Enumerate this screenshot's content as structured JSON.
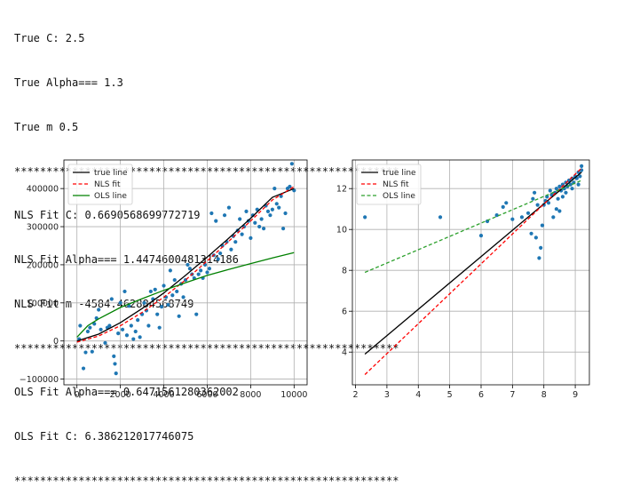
{
  "console": {
    "lines": [
      "True C: 2.5",
      "True Alpha=== 1.3",
      "True m 0.5",
      "************************************************************",
      "NLS Fit C: 0.6690568699772719",
      "NLS Fit Alpha=== 1.4474600481314186",
      "NLS Fit m -4584.462884568749",
      "************************************************************",
      "OLS Fit Alpha=== 0.6471561280362002",
      "OLS Fit C: 6.386212017746075",
      "************************************************************"
    ]
  },
  "colors": {
    "true_line": "#000000",
    "nls_fit": "#ff0000",
    "ols_line_left": "#008000",
    "ols_line_right": "#2ca02c",
    "scatter": "#1f77b4",
    "grid": "#b0b0b0"
  },
  "chart_data": [
    {
      "type": "scatter",
      "title": "",
      "xlabel": "",
      "ylabel": "",
      "xlim": [
        -600,
        10600
      ],
      "ylim": [
        -115000,
        475000
      ],
      "xticks": [
        0,
        2000,
        4000,
        6000,
        8000,
        10000
      ],
      "xtick_labels": [
        "0",
        "2000",
        "4000",
        "6000",
        "8000",
        "10000"
      ],
      "yticks": [
        -100000,
        0,
        100000,
        200000,
        300000,
        400000
      ],
      "ytick_labels": [
        "−100000",
        "0",
        "100000",
        "200000",
        "300000",
        "400000"
      ],
      "grid": true,
      "legend": {
        "position": "top-left",
        "entries": [
          {
            "label": "true line",
            "color": "#000000",
            "dash": "solid"
          },
          {
            "label": "NLS fit",
            "color": "#ff0000",
            "dash": "dashed"
          },
          {
            "label": "OLS line",
            "color": "#008000",
            "dash": "solid"
          }
        ]
      },
      "points": [
        [
          100,
          5000
        ],
        [
          150,
          40000
        ],
        [
          300,
          -72000
        ],
        [
          400,
          -30000
        ],
        [
          500,
          25000
        ],
        [
          600,
          35000
        ],
        [
          700,
          -28000
        ],
        [
          800,
          45000
        ],
        [
          900,
          60000
        ],
        [
          1000,
          82000
        ],
        [
          1100,
          30000
        ],
        [
          1300,
          -5000
        ],
        [
          1400,
          35000
        ],
        [
          1500,
          40000
        ],
        [
          1600,
          110000
        ],
        [
          1700,
          -40000
        ],
        [
          1750,
          -60000
        ],
        [
          1800,
          -85000
        ],
        [
          1900,
          20000
        ],
        [
          2000,
          100000
        ],
        [
          2100,
          30000
        ],
        [
          2200,
          130000
        ],
        [
          2300,
          15000
        ],
        [
          2400,
          92000
        ],
        [
          2500,
          40000
        ],
        [
          2600,
          5000
        ],
        [
          2700,
          25000
        ],
        [
          2800,
          55000
        ],
        [
          2900,
          10000
        ],
        [
          3000,
          70000
        ],
        [
          3100,
          100000
        ],
        [
          3200,
          80000
        ],
        [
          3300,
          40000
        ],
        [
          3400,
          130000
        ],
        [
          3500,
          110000
        ],
        [
          3600,
          135000
        ],
        [
          3700,
          70000
        ],
        [
          3800,
          35000
        ],
        [
          3900,
          90000
        ],
        [
          4000,
          145000
        ],
        [
          4100,
          115000
        ],
        [
          4200,
          95000
        ],
        [
          4300,
          185000
        ],
        [
          4400,
          120000
        ],
        [
          4500,
          160000
        ],
        [
          4600,
          130000
        ],
        [
          4700,
          65000
        ],
        [
          4800,
          150000
        ],
        [
          4900,
          115000
        ],
        [
          5000,
          160000
        ],
        [
          5100,
          200000
        ],
        [
          5200,
          190000
        ],
        [
          5300,
          175000
        ],
        [
          5400,
          165000
        ],
        [
          5500,
          70000
        ],
        [
          5600,
          175000
        ],
        [
          5700,
          185000
        ],
        [
          5800,
          165000
        ],
        [
          5900,
          200000
        ],
        [
          6000,
          180000
        ],
        [
          6100,
          190000
        ],
        [
          6200,
          335000
        ],
        [
          6300,
          225000
        ],
        [
          6400,
          315000
        ],
        [
          6500,
          215000
        ],
        [
          6600,
          230000
        ],
        [
          6700,
          250000
        ],
        [
          6800,
          330000
        ],
        [
          6900,
          260000
        ],
        [
          7000,
          350000
        ],
        [
          7100,
          240000
        ],
        [
          7200,
          275000
        ],
        [
          7300,
          260000
        ],
        [
          7400,
          290000
        ],
        [
          7500,
          320000
        ],
        [
          7600,
          280000
        ],
        [
          7700,
          300000
        ],
        [
          7800,
          340000
        ],
        [
          7900,
          315000
        ],
        [
          8000,
          270000
        ],
        [
          8100,
          330000
        ],
        [
          8200,
          310000
        ],
        [
          8300,
          345000
        ],
        [
          8400,
          300000
        ],
        [
          8500,
          320000
        ],
        [
          8600,
          295000
        ],
        [
          8700,
          355000
        ],
        [
          8800,
          340000
        ],
        [
          8900,
          330000
        ],
        [
          9000,
          345000
        ],
        [
          9100,
          400000
        ],
        [
          9200,
          360000
        ],
        [
          9300,
          350000
        ],
        [
          9400,
          380000
        ],
        [
          9500,
          295000
        ],
        [
          9600,
          335000
        ],
        [
          9700,
          400000
        ],
        [
          9800,
          405000
        ],
        [
          9900,
          465000
        ],
        [
          10000,
          395000
        ]
      ],
      "series": [
        {
          "name": "true line",
          "x": [
            0,
            1000,
            2000,
            3000,
            4000,
            5000,
            6000,
            7000,
            8000,
            9000,
            10000
          ],
          "y": [
            0,
            18000,
            48000,
            85000,
            126000,
            172000,
            220000,
            270000,
            322000,
            377000,
            400000
          ]
        },
        {
          "name": "NLS fit",
          "x": [
            0,
            1000,
            2000,
            3000,
            4000,
            5000,
            6000,
            7000,
            8000,
            9000,
            10000
          ],
          "y": [
            -3000,
            13000,
            40000,
            75000,
            115000,
            160000,
            210000,
            262000,
            315000,
            370000,
            405000
          ]
        },
        {
          "name": "OLS line",
          "x": [
            0,
            500,
            1000,
            2000,
            3000,
            4000,
            5000,
            6000,
            7000,
            8000,
            9000,
            10000
          ],
          "y": [
            10000,
            40000,
            58000,
            88000,
            111000,
            133000,
            153000,
            172000,
            188000,
            203000,
            218000,
            232000
          ]
        }
      ]
    },
    {
      "type": "scatter",
      "title": "",
      "xlabel": "",
      "ylabel": "",
      "xlim": [
        1.9,
        9.45
      ],
      "ylim": [
        2.4,
        13.4
      ],
      "xticks": [
        2,
        3,
        4,
        5,
        6,
        7,
        8,
        9
      ],
      "xtick_labels": [
        "2",
        "3",
        "4",
        "5",
        "6",
        "7",
        "8",
        "9"
      ],
      "yticks": [
        4,
        6,
        8,
        10,
        12
      ],
      "ytick_labels": [
        "4",
        "6",
        "8",
        "10",
        "12"
      ],
      "grid": true,
      "legend": {
        "position": "top-left",
        "entries": [
          {
            "label": "true line",
            "color": "#000000",
            "dash": "solid"
          },
          {
            "label": "NLS fit",
            "color": "#ff0000",
            "dash": "dashed"
          },
          {
            "label": "OLS line",
            "color": "#2ca02c",
            "dash": "dashed"
          }
        ]
      },
      "points": [
        [
          2.3,
          10.6
        ],
        [
          4.7,
          10.6
        ],
        [
          6.0,
          9.7
        ],
        [
          6.2,
          10.4
        ],
        [
          6.5,
          10.7
        ],
        [
          6.7,
          11.1
        ],
        [
          6.8,
          11.3
        ],
        [
          7.0,
          10.5
        ],
        [
          7.3,
          10.6
        ],
        [
          7.5,
          10.8
        ],
        [
          7.6,
          9.8
        ],
        [
          7.65,
          11.5
        ],
        [
          7.7,
          11.8
        ],
        [
          7.75,
          9.6
        ],
        [
          7.8,
          11.2
        ],
        [
          7.85,
          8.6
        ],
        [
          7.9,
          9.1
        ],
        [
          7.95,
          10.2
        ],
        [
          8.0,
          11.2
        ],
        [
          8.05,
          11.4
        ],
        [
          8.1,
          11.6
        ],
        [
          8.15,
          11.3
        ],
        [
          8.2,
          11.9
        ],
        [
          8.25,
          11.7
        ],
        [
          8.3,
          10.6
        ],
        [
          8.35,
          11.8
        ],
        [
          8.4,
          12.0
        ],
        [
          8.45,
          11.5
        ],
        [
          8.5,
          12.1
        ],
        [
          8.55,
          11.9
        ],
        [
          8.6,
          12.2
        ],
        [
          8.65,
          12.0
        ],
        [
          8.7,
          12.3
        ],
        [
          8.75,
          12.1
        ],
        [
          8.8,
          12.4
        ],
        [
          8.85,
          12.2
        ],
        [
          8.9,
          12.5
        ],
        [
          8.95,
          12.3
        ],
        [
          9.0,
          12.6
        ],
        [
          9.05,
          12.5
        ],
        [
          9.1,
          12.8
        ],
        [
          9.15,
          12.6
        ],
        [
          9.2,
          12.9
        ],
        [
          9.2,
          13.1
        ],
        [
          8.9,
          12.0
        ],
        [
          8.6,
          11.6
        ],
        [
          8.4,
          11.0
        ],
        [
          8.5,
          10.9
        ],
        [
          8.7,
          11.8
        ],
        [
          9.1,
          12.2
        ]
      ],
      "series": [
        {
          "name": "true line",
          "x": [
            2.3,
            9.2
          ],
          "y": [
            3.9,
            12.8
          ]
        },
        {
          "name": "NLS fit",
          "x": [
            2.3,
            9.2
          ],
          "y": [
            2.9,
            13.0
          ]
        },
        {
          "name": "OLS line",
          "x": [
            2.3,
            9.2
          ],
          "y": [
            7.9,
            12.4
          ]
        }
      ]
    }
  ]
}
